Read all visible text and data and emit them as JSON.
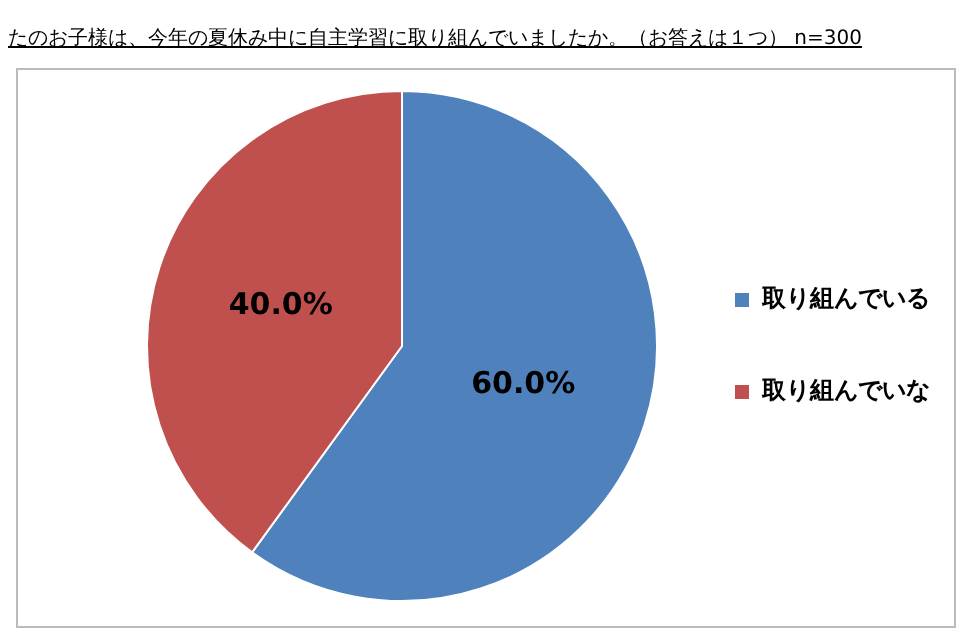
{
  "chart_data": {
    "type": "pie",
    "title": "たのお子様は、今年の夏休み中に自主学習に取り組んでいましたか。（お答えは１つ） n=300",
    "categories": [
      "取り組んでいる",
      "取り組んでいな"
    ],
    "values": [
      60,
      40
    ],
    "colors": [
      "#4f81bd",
      "#c0504d"
    ],
    "value_labels": [
      "60.0%",
      "40.0%"
    ],
    "legend": "right"
  }
}
